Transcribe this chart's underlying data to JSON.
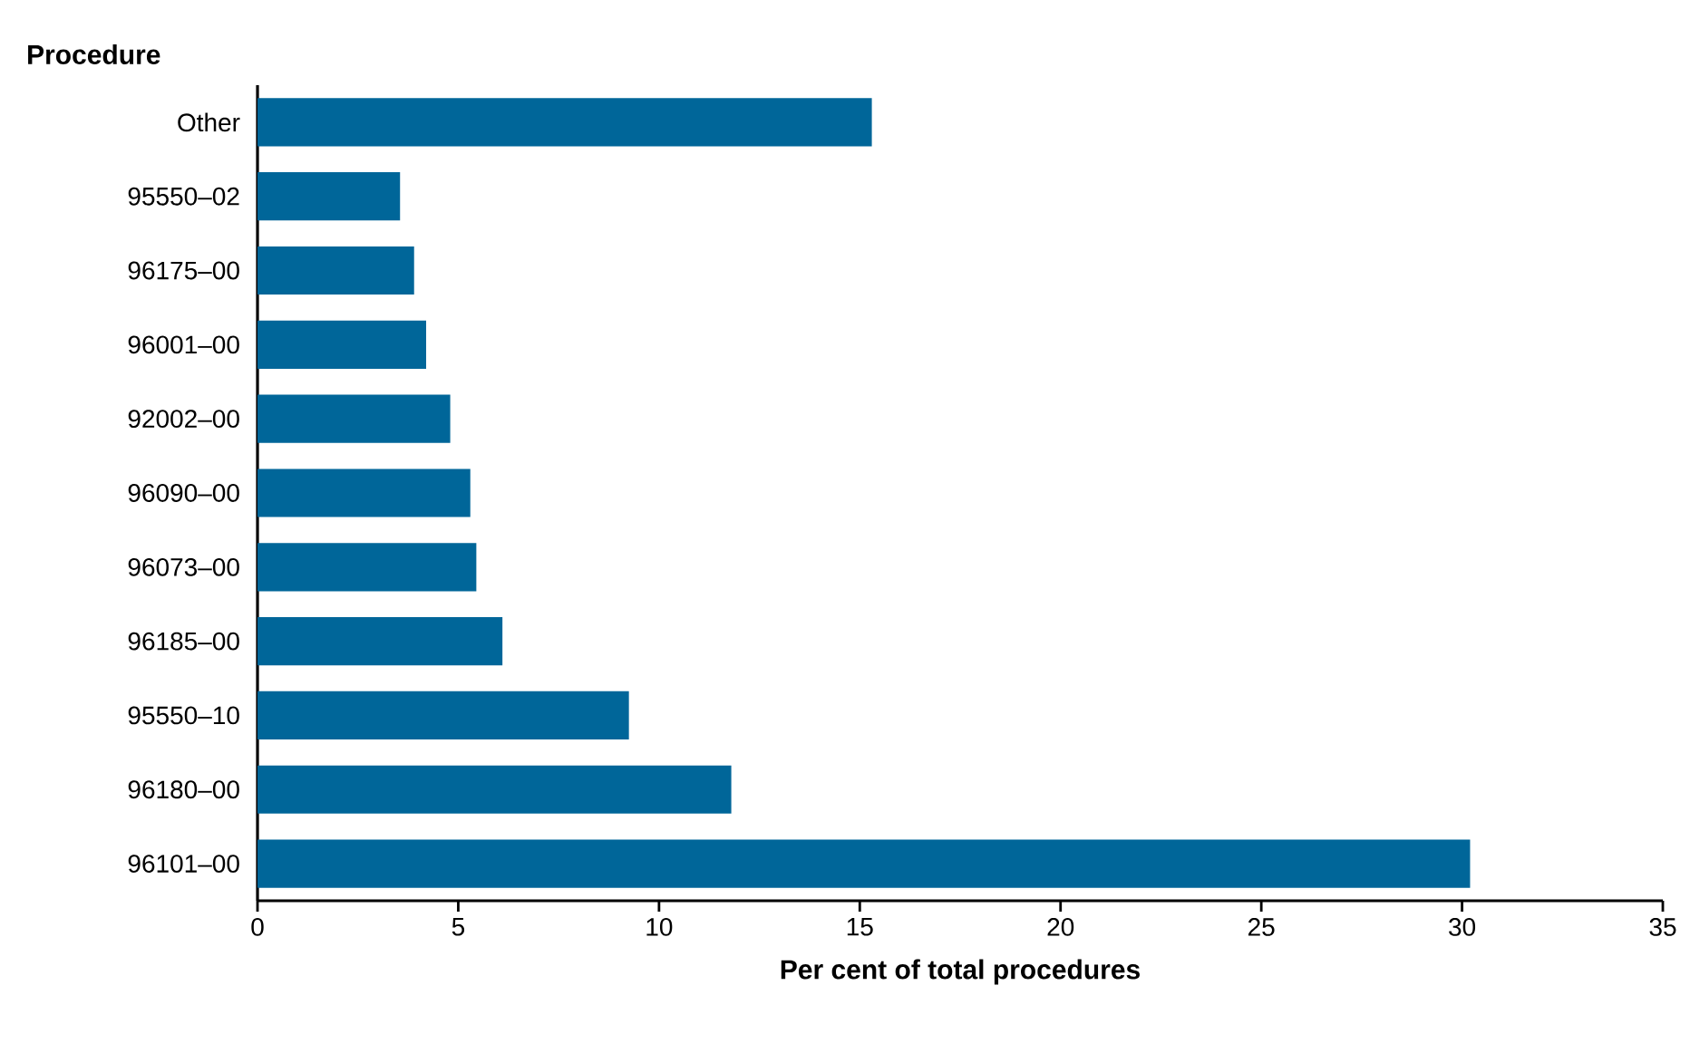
{
  "chart_data": {
    "type": "bar",
    "orientation": "horizontal",
    "ylabel": "Procedure",
    "xlabel": "Per cent of total procedures",
    "categories": [
      "Other",
      "95550–02",
      "96175–00",
      "96001–00",
      "92002–00",
      "96090–00",
      "96073–00",
      "96185–00",
      "95550–10",
      "96180–00",
      "96101–00"
    ],
    "values": [
      15.3,
      3.55,
      3.9,
      4.2,
      4.8,
      5.3,
      5.45,
      6.1,
      9.25,
      11.8,
      30.2
    ],
    "color": "#006699",
    "xlim": [
      0,
      35
    ],
    "xticks": [
      0,
      5,
      10,
      15,
      20,
      25,
      30,
      35
    ]
  }
}
